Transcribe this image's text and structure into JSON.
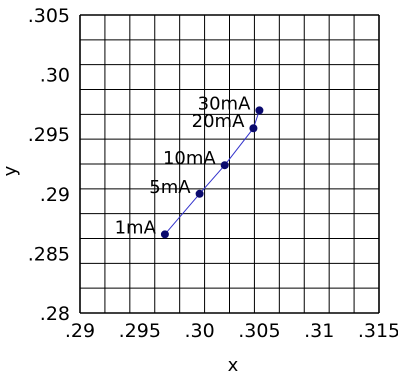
{
  "chart_data": {
    "type": "scatter",
    "title": "",
    "xlabel": "x",
    "ylabel": "y",
    "xlim": [
      0.29,
      0.315
    ],
    "ylim": [
      0.28,
      0.305
    ],
    "grid": true,
    "x_ticks": [
      {
        "value": 0.29,
        "label": ".29"
      },
      {
        "value": 0.295,
        "label": ".295"
      },
      {
        "value": 0.3,
        "label": ".30"
      },
      {
        "value": 0.305,
        "label": ".305"
      },
      {
        "value": 0.31,
        "label": ".31"
      },
      {
        "value": 0.315,
        "label": ".315"
      }
    ],
    "y_ticks": [
      {
        "value": 0.28,
        "label": ".28"
      },
      {
        "value": 0.285,
        "label": ".285"
      },
      {
        "value": 0.29,
        "label": ".29"
      },
      {
        "value": 0.295,
        "label": ".295"
      },
      {
        "value": 0.3,
        "label": ".30"
      },
      {
        "value": 0.305,
        "label": ".305"
      }
    ],
    "series": [
      {
        "color": "#0a0a6e",
        "line_color": "#3333cc",
        "points": [
          {
            "label": "1mA",
            "x": 0.2971,
            "y": 0.2866
          },
          {
            "label": "5mA",
            "x": 0.3,
            "y": 0.29
          },
          {
            "label": "10mA",
            "x": 0.3021,
            "y": 0.2924
          },
          {
            "label": "20mA",
            "x": 0.3045,
            "y": 0.2955
          },
          {
            "label": "30mA",
            "x": 0.305,
            "y": 0.297
          }
        ]
      }
    ]
  }
}
